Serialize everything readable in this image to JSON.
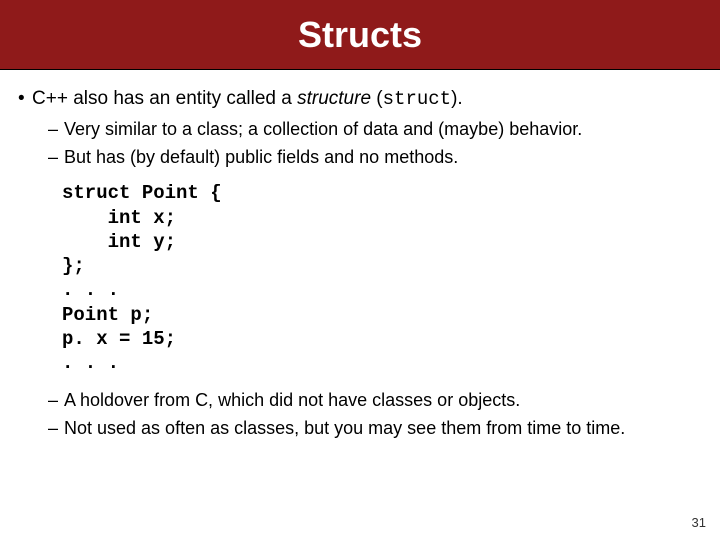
{
  "title": "Structs",
  "bullets": {
    "main_prefix": "C++ also has an entity called a ",
    "main_italic": "structure",
    "main_mid": " (",
    "main_mono": "struct",
    "main_suffix": ").",
    "sub1": "Very similar to a class;  a collection of data and (maybe) behavior.",
    "sub2": "But has (by default) public fields and no methods.",
    "sub3": "A holdover from C, which did not have classes or objects.",
    "sub4": "Not used as often as classes, but you may see them from time to time."
  },
  "code": "struct Point {\n    int x;\n    int y;\n};\n. . .\nPoint p;\np. x = 15;\n. . .",
  "page_number": "31",
  "colors": {
    "title_bg": "#8f1a1a",
    "title_fg": "#ffffff",
    "body_bg": "#ffffff"
  }
}
